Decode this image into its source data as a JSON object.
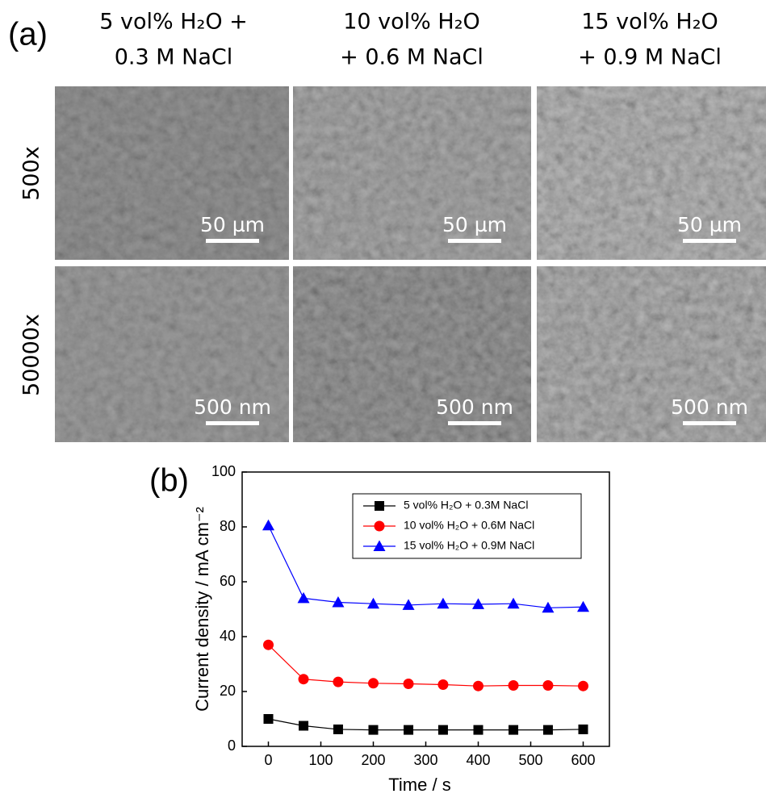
{
  "panel_a": {
    "label": "(a)",
    "columns": [
      {
        "line1": "5 vol% H₂O +",
        "line2": "0.3 M NaCl"
      },
      {
        "line1": "10 vol% H₂O",
        "line2": "+ 0.6 M NaCl"
      },
      {
        "line1": "15 vol% H₂O",
        "line2": "+ 0.9 M NaCl"
      }
    ],
    "rows": [
      "500x",
      "50000x"
    ],
    "scale_bars": [
      [
        "50 µm",
        "50 µm",
        "50 µm"
      ],
      [
        "500 nm",
        "500 nm",
        "500 nm"
      ]
    ]
  },
  "chart_data": {
    "type": "line",
    "panel_label": "(b)",
    "x_label": "Time / s",
    "y_label": "Current density / mA cm⁻²",
    "x": [
      0,
      67,
      133,
      200,
      267,
      333,
      400,
      467,
      533,
      600
    ],
    "series": [
      {
        "name": "5 vol% H₂O + 0.3M NaCl",
        "color": "#000000",
        "marker": "square",
        "values": [
          10,
          7.5,
          6.2,
          6,
          6,
          6,
          6,
          6,
          6,
          6.2
        ]
      },
      {
        "name": "10 vol% H₂O + 0.6M NaCl",
        "color": "#ff0000",
        "marker": "circle",
        "values": [
          37,
          24.5,
          23.5,
          23,
          22.8,
          22.5,
          22,
          22.2,
          22.2,
          22
        ]
      },
      {
        "name": "15 vol% H₂O + 0.9M NaCl",
        "color": "#0000ff",
        "marker": "triangle",
        "values": [
          80.5,
          54,
          52.5,
          52,
          51.5,
          52,
          51.8,
          52,
          50.5,
          50.8
        ]
      }
    ],
    "xlim": [
      -50,
      650
    ],
    "xticks": [
      0,
      100,
      200,
      300,
      400,
      500,
      600
    ],
    "ylim": [
      0,
      100
    ],
    "yticks": [
      0,
      20,
      40,
      60,
      80,
      100
    ]
  }
}
